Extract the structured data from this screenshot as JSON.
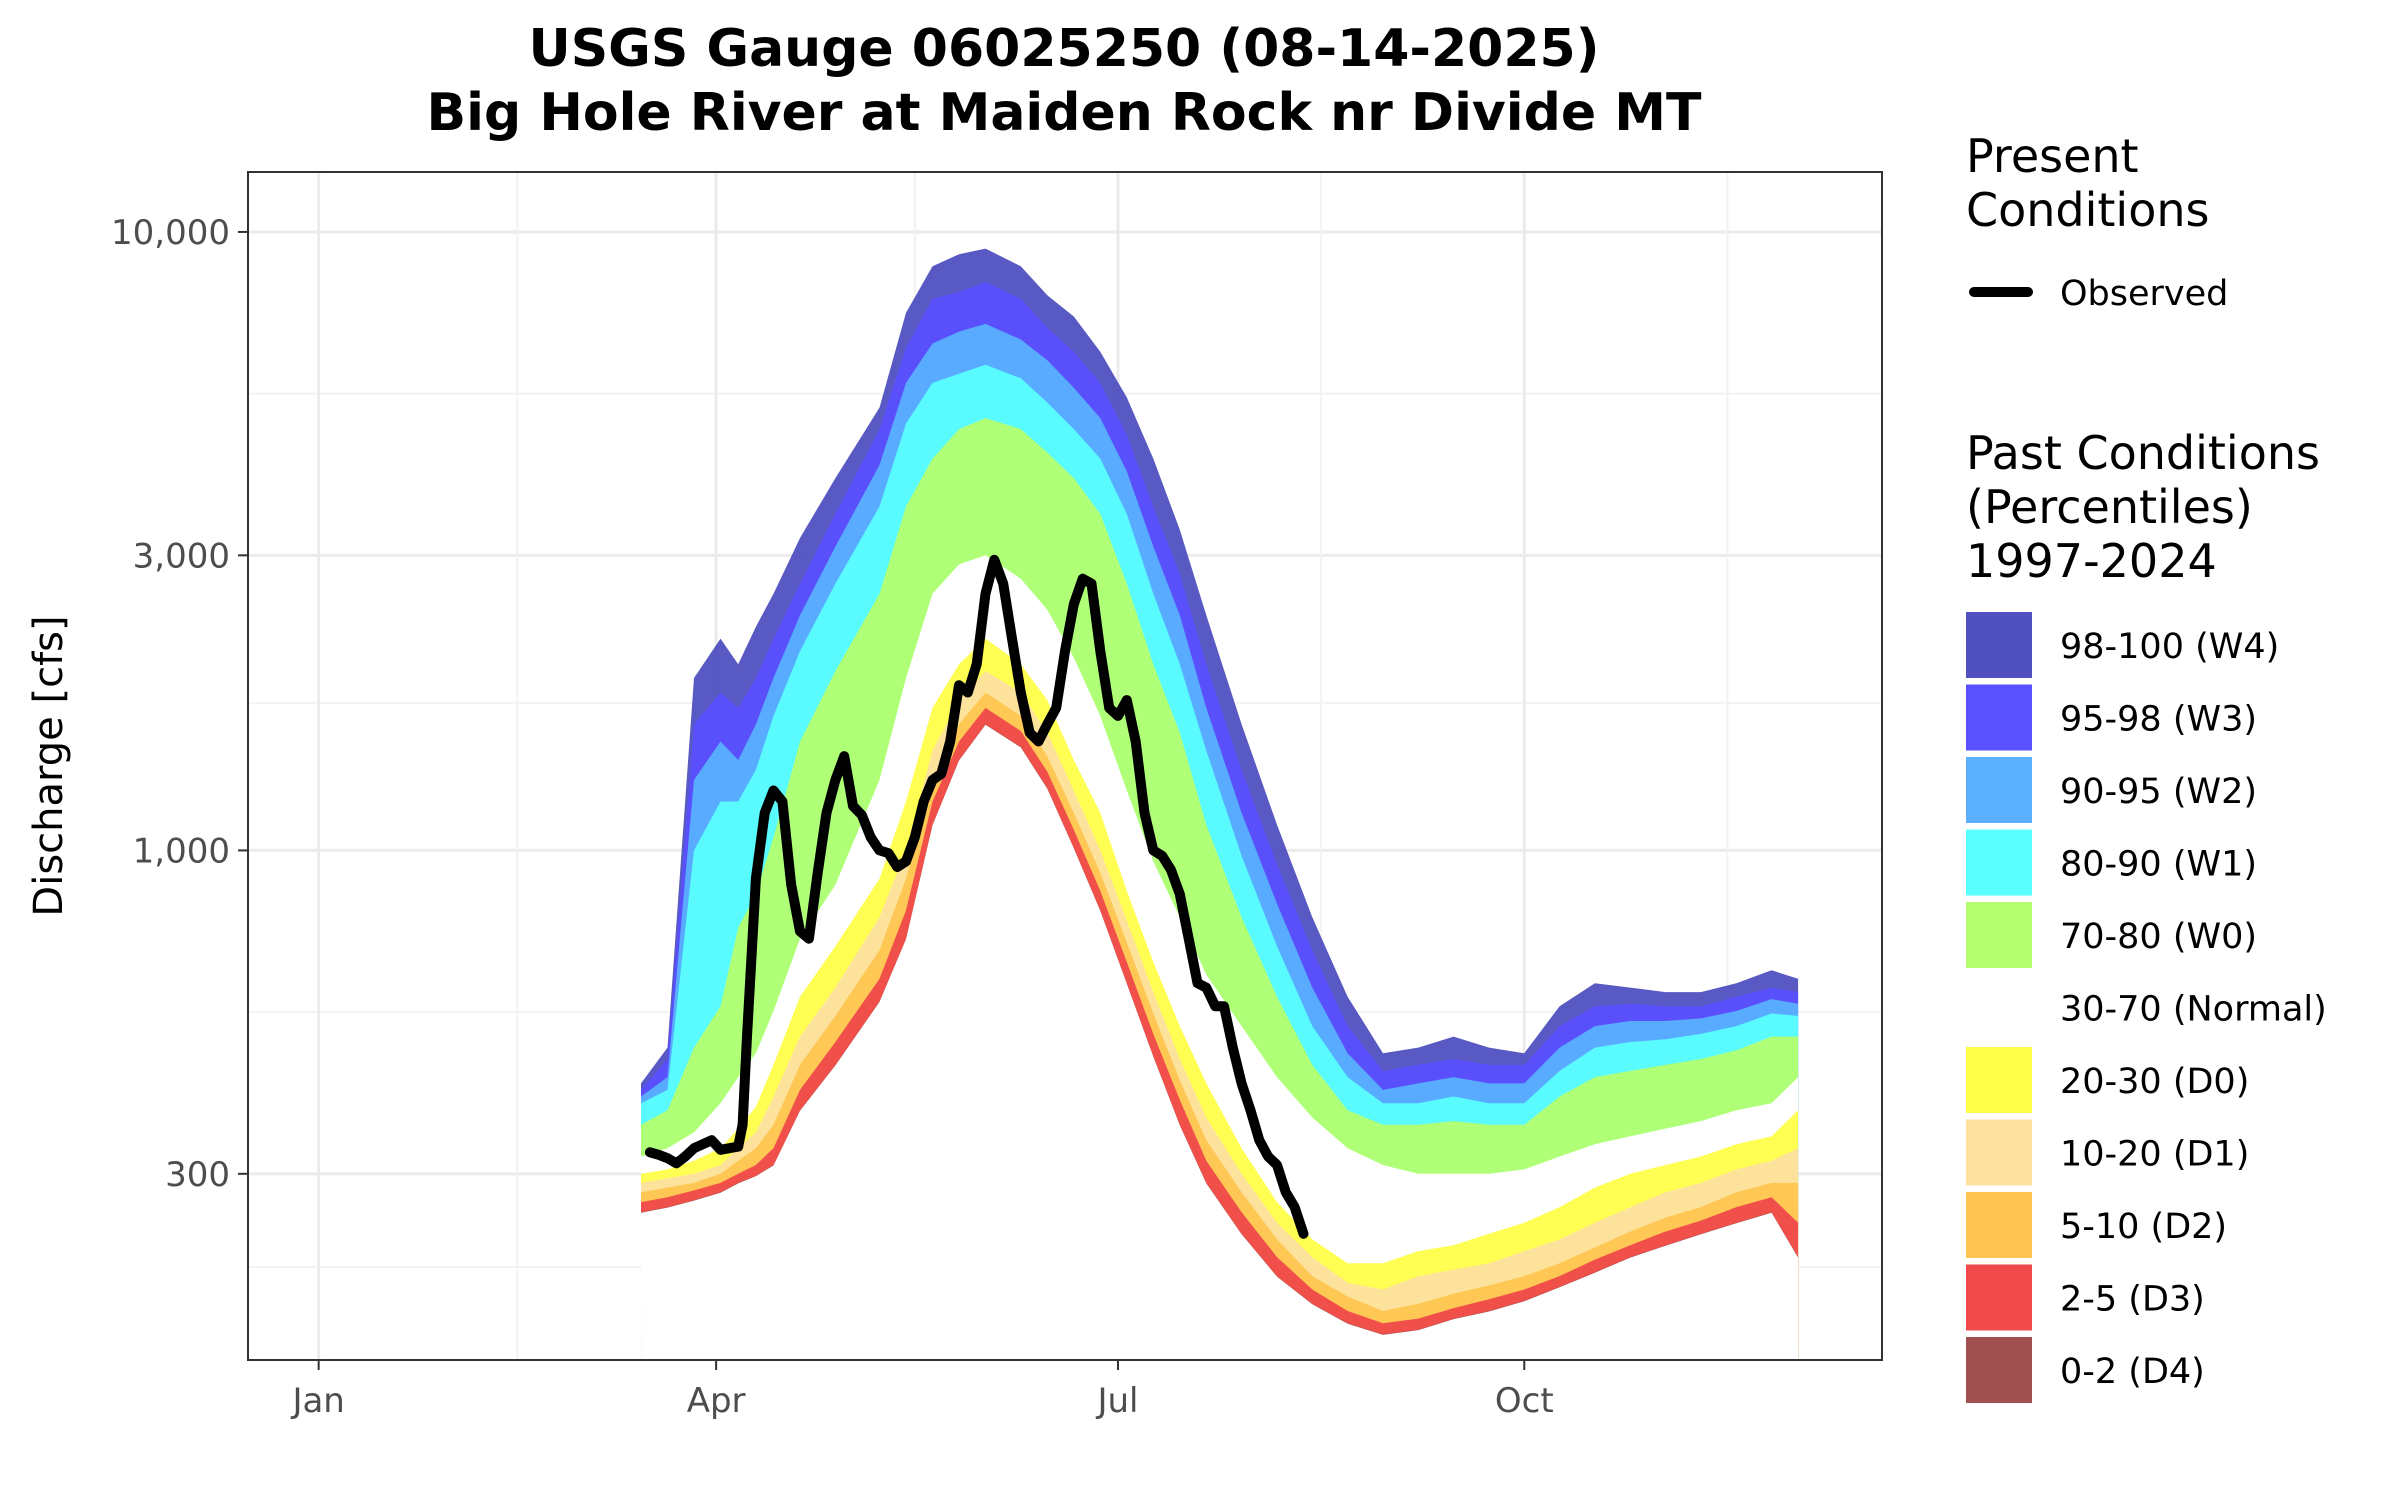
{
  "chart_data": {
    "type": "area",
    "title": "USGS Gauge 06025250 (08-14-2025)",
    "subtitle": "Big Hole River at Maiden Rock nr Divide MT",
    "xlabel": "",
    "ylabel": "Discharge [cfs]",
    "y_scale": "log",
    "ylim": [
      150,
      12500
    ],
    "y_ticks": [
      300,
      1000,
      3000,
      10000
    ],
    "y_tick_labels": [
      "300",
      "1,000",
      "3,000",
      "10,000"
    ],
    "x_domain_day_of_year": [
      -15,
      355
    ],
    "x_ticks": [
      {
        "label": "Jan",
        "day": 1
      },
      {
        "label": "Apr",
        "day": 91
      },
      {
        "label": "Jul",
        "day": 182
      },
      {
        "label": "Oct",
        "day": 274
      }
    ],
    "x_minor_ticks": [
      46,
      136,
      228,
      320
    ],
    "grid": true,
    "legend_placement": "right",
    "legend_present": {
      "title_lines": [
        "Present",
        "Conditions"
      ],
      "entries": [
        {
          "label": "Observed",
          "color": "#000000"
        }
      ]
    },
    "legend_past": {
      "title_lines": [
        "Past Conditions",
        "(Percentiles)",
        "1997-2024"
      ],
      "entries": [
        {
          "label": "98-100 (W4)",
          "color": "#5050c0"
        },
        {
          "label": "95-98 (W3)",
          "color": "#5a50ff"
        },
        {
          "label": "90-95 (W2)",
          "color": "#5ab0ff"
        },
        {
          "label": "80-90 (W1)",
          "color": "#5affff"
        },
        {
          "label": "70-80 (W0)",
          "color": "#b4ff70"
        },
        {
          "label": "30-70 (Normal)",
          "color": "#ffffff"
        },
        {
          "label": "20-30 (D0)",
          "color": "#ffff4a"
        },
        {
          "label": "10-20 (D1)",
          "color": "#fde0a0"
        },
        {
          "label": "5-10 (D2)",
          "color": "#ffc550"
        },
        {
          "label": "2-5 (D3)",
          "color": "#f04a4a"
        },
        {
          "label": "0-2 (D4)",
          "color": "#a05050"
        }
      ]
    },
    "x": [
      74,
      80,
      86,
      92,
      96,
      100,
      104,
      110,
      118,
      128,
      134,
      140,
      146,
      152,
      160,
      166,
      172,
      178,
      184,
      190,
      196,
      202,
      210,
      218,
      226,
      234,
      242,
      250,
      258,
      266,
      274,
      282,
      290,
      298,
      306,
      314,
      322,
      330,
      336
    ],
    "series": [
      {
        "name": "98-100 (W4)",
        "color": "#5050c0",
        "values": [
          420,
          480,
          1900,
          2200,
          2000,
          2300,
          2600,
          3200,
          4000,
          5200,
          7400,
          8800,
          9200,
          9400,
          8800,
          7900,
          7300,
          6400,
          5400,
          4300,
          3300,
          2400,
          1600,
          1100,
          780,
          580,
          470,
          480,
          500,
          480,
          470,
          560,
          610,
          600,
          590,
          590,
          610,
          640,
          620
        ]
      },
      {
        "name": "95-98 (W3)",
        "color": "#5a50ff",
        "values": [
          410,
          460,
          1600,
          1800,
          1700,
          1900,
          2200,
          2700,
          3500,
          4800,
          6500,
          7800,
          8000,
          8300,
          7800,
          7000,
          6400,
          5700,
          4700,
          3600,
          2800,
          2000,
          1350,
          950,
          690,
          520,
          440,
          450,
          460,
          450,
          450,
          520,
          560,
          565,
          560,
          560,
          580,
          600,
          590
        ]
      },
      {
        "name": "90-95 (W2)",
        "color": "#5ab0ff",
        "values": [
          400,
          430,
          1300,
          1500,
          1400,
          1600,
          1900,
          2400,
          3100,
          4200,
          5700,
          6600,
          6900,
          7100,
          6700,
          6200,
          5600,
          5000,
          4100,
          3100,
          2400,
          1700,
          1150,
          820,
          600,
          470,
          410,
          420,
          430,
          420,
          420,
          480,
          520,
          530,
          530,
          535,
          550,
          575,
          565
        ]
      },
      {
        "name": "80-90 (W1)",
        "color": "#5affff",
        "values": [
          390,
          410,
          1000,
          1200,
          1200,
          1350,
          1650,
          2100,
          2700,
          3600,
          4900,
          5700,
          5900,
          6100,
          5800,
          5300,
          4800,
          4300,
          3500,
          2600,
          2000,
          1450,
          980,
          700,
          520,
          430,
          390,
          390,
          400,
          390,
          390,
          440,
          480,
          490,
          495,
          505,
          520,
          545,
          540
        ]
      },
      {
        "name": "70-80 (W0)",
        "color": "#b4ff70",
        "values": [
          360,
          380,
          480,
          560,
          750,
          850,
          1050,
          1500,
          1950,
          2600,
          3600,
          4300,
          4800,
          5000,
          4800,
          4400,
          4000,
          3500,
          2700,
          2000,
          1550,
          1100,
          780,
          580,
          450,
          380,
          360,
          360,
          365,
          360,
          360,
          400,
          430,
          440,
          450,
          460,
          475,
          500,
          500
        ]
      },
      {
        "name": "30-70 (Normal)",
        "color": "#ffffff",
        "values": [
          320,
          330,
          350,
          390,
          430,
          470,
          550,
          720,
          880,
          1300,
          1900,
          2600,
          2900,
          3000,
          2750,
          2450,
          2050,
          1650,
          1250,
          960,
          780,
          630,
          520,
          430,
          370,
          330,
          310,
          300,
          300,
          300,
          305,
          320,
          335,
          345,
          355,
          365,
          380,
          390,
          430
        ]
      },
      {
        "name": "20-30 (D0)",
        "color": "#ffff4a",
        "values": [
          300,
          305,
          315,
          330,
          355,
          385,
          450,
          580,
          700,
          900,
          1200,
          1700,
          2000,
          2200,
          2000,
          1750,
          1400,
          1150,
          860,
          660,
          520,
          420,
          330,
          270,
          235,
          215,
          215,
          225,
          230,
          240,
          250,
          265,
          285,
          300,
          310,
          320,
          335,
          345,
          380
        ]
      },
      {
        "name": "10-20 (D1)",
        "color": "#fde0a0",
        "values": [
          290,
          295,
          300,
          310,
          330,
          350,
          400,
          500,
          600,
          780,
          1000,
          1450,
          1750,
          1950,
          1800,
          1550,
          1250,
          1000,
          770,
          590,
          460,
          370,
          300,
          250,
          220,
          200,
          195,
          205,
          210,
          215,
          225,
          235,
          250,
          265,
          280,
          290,
          305,
          315,
          330
        ]
      },
      {
        "name": "5-10 (D2)",
        "color": "#ffc550",
        "values": [
          280,
          285,
          290,
          300,
          315,
          330,
          360,
          450,
          540,
          690,
          900,
          1300,
          1600,
          1800,
          1650,
          1420,
          1150,
          920,
          710,
          545,
          425,
          340,
          280,
          235,
          205,
          190,
          180,
          185,
          192,
          198,
          205,
          215,
          228,
          242,
          255,
          265,
          280,
          290,
          290
        ]
      },
      {
        "name": "2-5 (D3)",
        "color": "#f04a4a",
        "values": [
          270,
          275,
          282,
          290,
          300,
          310,
          330,
          410,
          490,
          620,
          800,
          1200,
          1500,
          1700,
          1560,
          1340,
          1080,
          860,
          660,
          505,
          395,
          315,
          260,
          220,
          195,
          180,
          172,
          175,
          182,
          188,
          195,
          205,
          218,
          230,
          242,
          252,
          265,
          275,
          250
        ]
      },
      {
        "name": "0-2 (D4)",
        "color": "#a05050",
        "values": [
          260,
          265,
          272,
          280,
          290,
          298,
          310,
          380,
          450,
          570,
          720,
          1100,
          1400,
          1600,
          1470,
          1260,
          1010,
          800,
          610,
          465,
          360,
          290,
          240,
          205,
          185,
          172,
          165,
          168,
          175,
          180,
          187,
          197,
          208,
          220,
          230,
          240,
          250,
          260,
          220
        ]
      }
    ],
    "observed": {
      "name": "Observed",
      "color": "#000000",
      "x": [
        76,
        78,
        80,
        82,
        84,
        86,
        88,
        90,
        91,
        92,
        94,
        96,
        97,
        98,
        100,
        102,
        104,
        106,
        108,
        110,
        112,
        114,
        116,
        118,
        120,
        122,
        124,
        126,
        128,
        130,
        132,
        134,
        136,
        138,
        140,
        142,
        144,
        146,
        148,
        150,
        152,
        154,
        156,
        158,
        160,
        162,
        164,
        166,
        168,
        170,
        172,
        174,
        176,
        178,
        180,
        182,
        184,
        186,
        188,
        190,
        192,
        194,
        196,
        198,
        200,
        202,
        204,
        206,
        208,
        210,
        212,
        214,
        216,
        218,
        220,
        222,
        224
      ],
      "values": [
        325,
        322,
        318,
        312,
        320,
        330,
        335,
        340,
        334,
        328,
        330,
        332,
        360,
        500,
        900,
        1150,
        1250,
        1200,
        880,
        740,
        720,
        920,
        1150,
        1300,
        1420,
        1180,
        1140,
        1050,
        1000,
        990,
        940,
        960,
        1050,
        1200,
        1300,
        1330,
        1500,
        1850,
        1800,
        2000,
        2600,
        2950,
        2700,
        2200,
        1800,
        1550,
        1500,
        1600,
        1700,
        2100,
        2500,
        2750,
        2700,
        2100,
        1700,
        1650,
        1750,
        1500,
        1150,
        1000,
        980,
        930,
        850,
        720,
        610,
        600,
        560,
        560,
        480,
        420,
        380,
        340,
        320,
        310,
        280,
        265,
        240
      ]
    }
  }
}
